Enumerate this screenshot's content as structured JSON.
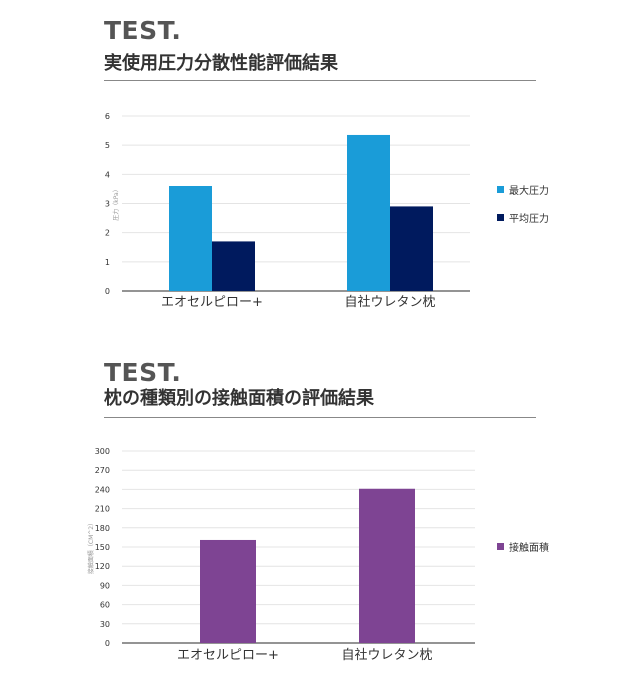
{
  "sections": [
    {
      "label": "TEST.",
      "title": "実使用圧力分散性能評価結果"
    },
    {
      "label": "TEST.",
      "title": "枕の種類別の接触面積の評価結果"
    }
  ],
  "chart_data": [
    {
      "type": "bar",
      "categories": [
        "エオセルピロー+",
        "自社ウレタン枕"
      ],
      "series": [
        {
          "name": "最大圧力",
          "values": [
            3.6,
            5.35
          ],
          "color": "#1a9cd8"
        },
        {
          "name": "平均圧力",
          "values": [
            1.7,
            2.9
          ],
          "color": "#001a5e"
        }
      ],
      "ylabel": "圧力（kPa）",
      "ylim": [
        0,
        6
      ],
      "yticks": [
        0,
        1,
        2,
        3,
        4,
        5,
        6
      ],
      "grid": true,
      "legend": "right"
    },
    {
      "type": "bar",
      "categories": [
        "エオセルピロー+",
        "自社ウレタン枕"
      ],
      "series": [
        {
          "name": "接触面積",
          "values": [
            161,
            241
          ],
          "color": "#7e4493"
        }
      ],
      "ylabel": "接触面積（CM^2）",
      "ylim": [
        0,
        300
      ],
      "yticks": [
        0,
        30,
        60,
        90,
        120,
        150,
        180,
        210,
        240,
        270,
        300
      ],
      "grid": true,
      "legend": "right"
    }
  ]
}
